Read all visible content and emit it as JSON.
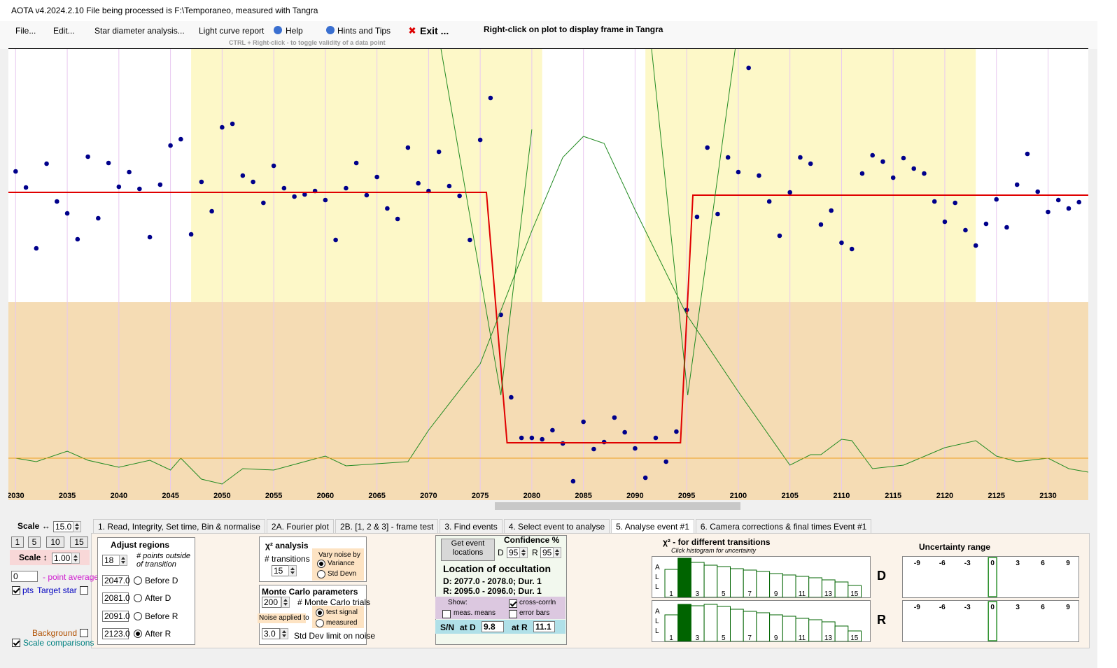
{
  "title_bar": "AOTA v4.2024.2.10    File being processed is F:\\Temporaneo, measured with Tangra",
  "menu": [
    "File...",
    "Edit...",
    "Star diameter analysis...",
    "Light curve report",
    "Help",
    "Hints and Tips",
    "Exit ..."
  ],
  "hint": "Right-click on plot to display frame in Tangra",
  "sub_hint": "CTRL + Right-click  -  to toggle validity of a data point",
  "plot": {
    "xlim": [
      2029.3,
      2133.9
    ],
    "ylim": [
      -82,
      563
    ],
    "xticks": [
      2030,
      2035,
      2040,
      2045,
      2050,
      2055,
      2060,
      2065,
      2070,
      2075,
      2080,
      2085,
      2090,
      2095,
      2100,
      2105,
      2110,
      2115,
      2120,
      2125,
      2130
    ],
    "series": [
      {
        "kind": "points",
        "color": "#00008b",
        "x": [
          2030,
          2031,
          2032,
          2033,
          2034,
          2035,
          2036,
          2037,
          2038,
          2039,
          2040,
          2041,
          2042,
          2043,
          2044,
          2045,
          2046,
          2047,
          2048,
          2049,
          2050,
          2051,
          2052,
          2053,
          2054,
          2055,
          2056,
          2057,
          2058,
          2059,
          2060,
          2061,
          2062,
          2063,
          2064,
          2065,
          2066,
          2067,
          2068,
          2069,
          2070,
          2071,
          2072,
          2073,
          2074,
          2075,
          2076,
          2077,
          2078,
          2079,
          2080,
          2081,
          2082,
          2083,
          2084,
          2085,
          2086,
          2087,
          2088,
          2089,
          2090,
          2091,
          2092,
          2093,
          2094,
          2095,
          2096,
          2097,
          2098,
          2099,
          2100,
          2101,
          2102,
          2103,
          2104,
          2105,
          2106,
          2107,
          2108,
          2109,
          2110,
          2111,
          2112,
          2113,
          2114,
          2115,
          2116,
          2117,
          2118,
          2119,
          2120,
          2121,
          2122,
          2123,
          2124,
          2125,
          2126,
          2127,
          2128,
          2129,
          2130,
          2131,
          2132,
          2133
        ],
        "values": [
          388,
          365,
          278,
          399,
          345,
          328,
          291,
          409,
          321,
          400,
          366,
          387,
          363,
          294,
          369,
          425,
          434,
          298,
          373,
          331,
          451,
          456,
          382,
          373,
          343,
          396,
          364,
          352,
          355,
          360,
          347,
          290,
          364,
          400,
          354,
          380,
          335,
          320,
          422,
          371,
          360,
          416,
          367,
          353,
          290,
          433,
          493,
          183,
          65,
          7,
          7,
          5,
          18,
          -1,
          -55,
          30,
          -9,
          1,
          36,
          15,
          -8,
          -50,
          7,
          -27,
          16,
          190,
          323,
          422,
          327,
          408,
          387,
          536,
          382,
          345,
          296,
          358,
          408,
          399,
          312,
          332,
          286,
          277,
          385,
          411,
          402,
          379,
          407,
          392,
          385,
          345,
          316,
          343,
          304,
          282,
          313,
          348,
          308,
          369,
          413,
          359,
          330,
          347,
          335,
          344
        ]
      },
      {
        "kind": "line",
        "color": "#e00000",
        "width": 2,
        "x": [
          2029.3,
          2075.6,
          2077.6,
          2094.4,
          2095.6,
          2133.9
        ],
        "values": [
          358,
          358,
          0,
          0,
          354,
          354
        ]
      },
      {
        "kind": "line",
        "color": "#228b22",
        "width": 1,
        "x": [
          2030,
          2032,
          2035,
          2037,
          2040,
          2043,
          2045,
          2046,
          2048,
          2050,
          2052,
          2055,
          2058,
          2060,
          2062,
          2064,
          2066,
          2068,
          2070,
          2075,
          2080,
          2083,
          2085,
          2087,
          2090,
          2095,
          2100,
          2105,
          2107,
          2108,
          2110,
          2111,
          2113,
          2116,
          2120,
          2123,
          2125,
          2127,
          2130,
          2132,
          2133.9
        ],
        "values": [
          -22,
          -27,
          -12,
          -25,
          -35,
          -25,
          -39,
          -22,
          -52,
          -59,
          -37,
          -39,
          -27,
          -19,
          -33,
          -31,
          -29,
          -27,
          18,
          113,
          303,
          408,
          438,
          428,
          333,
          183,
          73,
          -32,
          -17,
          -17,
          5,
          3,
          -37,
          -32,
          -7,
          3,
          -19,
          -27,
          -22,
          -37,
          -42
        ]
      },
      {
        "kind": "line",
        "color": "#228b22",
        "width": 1,
        "x": [
          2071.2,
          2077.0,
          2080.0
        ],
        "values": [
          563,
          68,
          448
        ]
      },
      {
        "kind": "line",
        "color": "#228b22",
        "width": 1,
        "x": [
          2091.6,
          2095.1,
          2099.7
        ],
        "values": [
          563,
          68,
          563
        ]
      },
      {
        "kind": "line",
        "color": "#f0a020",
        "width": 1,
        "x": [
          2029.3,
          2133.9
        ],
        "values": [
          -22,
          -22
        ]
      }
    ]
  },
  "tabs": [
    "1.  Read, Integrity, Set time, Bin & normalise",
    "2A. Fourier plot",
    "2B. [1, 2 & 3] - frame test",
    "3. Find events",
    "4. Select event to analyse",
    "5. Analyse event #1",
    "6. Camera corrections & final times Event #1"
  ],
  "active_tab": 5,
  "left": {
    "scale_h": "Scale ↔",
    "scale_h_value": "15.0",
    "buttons": [
      "1",
      "5",
      "10",
      "15"
    ],
    "scale_v": "Scale ↕",
    "scale_v_value": "1.00",
    "average": "0",
    "average_label": "- point average",
    "pts": "pts",
    "target": "Target star",
    "background": "Background",
    "comparisons": "Scale comparisons"
  },
  "adjust_regions": {
    "title": "Adjust regions",
    "points": "18",
    "points_label": "# points outside of transition",
    "inputs": [
      {
        "value": 2047,
        "display": "2047.0",
        "radio": "Before D"
      },
      {
        "value": 2081,
        "display": "2081.0",
        "radio": "After D"
      },
      {
        "value": 2091,
        "display": "2091.0",
        "radio": "Before R"
      },
      {
        "value": 2123,
        "display": "2123.0",
        "radio": "After R"
      }
    ]
  },
  "chi2": {
    "title": "χ² analysis",
    "transitions_label": "# transitions",
    "transitions": "15",
    "vary": "Vary noise by",
    "variance": "Variance",
    "std": "Std Devn"
  },
  "monte_carlo": {
    "title": "Monte Carlo parameters",
    "trials": "200",
    "trials_label": "# Monte Carlo trials",
    "noise_applied": "Noise applied to",
    "test": "test signal",
    "measured": "measured",
    "limit": "3.0",
    "limit_label": "Std Dev limit on noise"
  },
  "event": {
    "button": "Get event locations",
    "confidence": "Confidence %",
    "d": "D",
    "d_value": "95",
    "r": "R",
    "r_value": "95",
    "location": "Location of occultation",
    "d_text": "D: 2077.0 - 2078.0; Dur. 1",
    "r_text": "R: 2095.0 - 2096.0; Dur. 1",
    "show": "Show:",
    "cross": "cross-corrln",
    "means": "meas. means",
    "error": "error bars",
    "sn": "S/N",
    "at_d": "at D",
    "sn_d": "9.8",
    "at_r": "at R",
    "sn_r": "11.1"
  },
  "histogram": {
    "title": "χ² - for different transitions",
    "subtitle": "Click histogram for uncertainty",
    "side_label": [
      "A",
      "L",
      "L"
    ],
    "ylim": [
      0,
      58
    ],
    "bar_labels": [
      1,
      3,
      5,
      7,
      9,
      11,
      13,
      15
    ],
    "selected": 1,
    "color": "#ffffff",
    "selected_color": "#006400",
    "rows": [
      {
        "name": "D",
        "values": [
          40,
          56,
          50,
          46,
          44,
          41,
          39,
          37,
          34,
          32,
          30,
          28,
          25,
          22,
          17
        ]
      },
      {
        "name": "R",
        "values": [
          38,
          53,
          51,
          53,
          50,
          46,
          43,
          41,
          38,
          36,
          33,
          31,
          28,
          22,
          15
        ]
      }
    ]
  },
  "uncertainty": {
    "title": "Uncertainty range",
    "xlim": [
      -10.7,
      10.25
    ],
    "ticks": [
      -9,
      -6,
      -3,
      0,
      3,
      6,
      9
    ],
    "selected": 0
  }
}
